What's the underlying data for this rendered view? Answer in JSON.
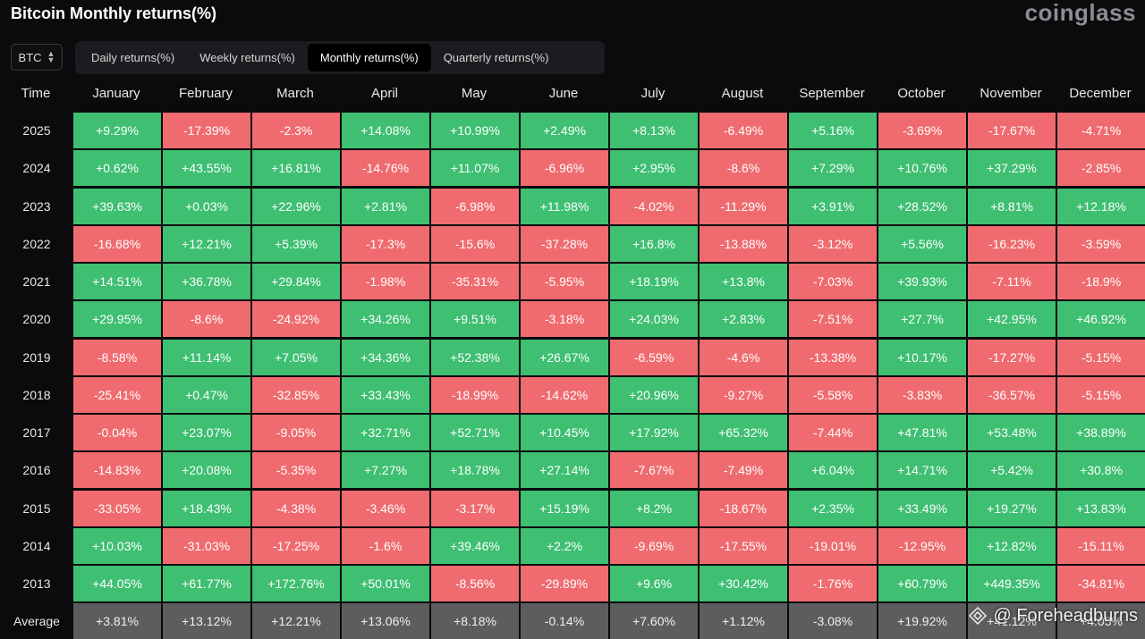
{
  "title": "Bitcoin Monthly returns(%)",
  "brand": "coinglass",
  "coin_select": {
    "value": "BTC"
  },
  "tabs": [
    {
      "label": "Daily returns(%)",
      "active": false
    },
    {
      "label": "Weekly returns(%)",
      "active": false
    },
    {
      "label": "Monthly returns(%)",
      "active": true
    },
    {
      "label": "Quarterly returns(%)",
      "active": false
    }
  ],
  "watermark": "@ Foreheadburns",
  "colors": {
    "positive": "#3ebf72",
    "negative": "#ef6b6f",
    "average": "#5d5d60",
    "background": "#0b0b0d"
  },
  "chart_data": {
    "type": "table",
    "title": "Bitcoin Monthly returns(%)",
    "row_header": "Time",
    "columns": [
      "January",
      "February",
      "March",
      "April",
      "May",
      "June",
      "July",
      "August",
      "September",
      "October",
      "November",
      "December"
    ],
    "rows": [
      {
        "year": "2025",
        "values": [
          "+9.29%",
          "-17.39%",
          "-2.3%",
          "+14.08%",
          "+10.99%",
          "+2.49%",
          "+8.13%",
          "-6.49%",
          "+5.16%",
          "-3.69%",
          "-17.67%",
          "-4.71%"
        ]
      },
      {
        "year": "2024",
        "values": [
          "+0.62%",
          "+43.55%",
          "+16.81%",
          "-14.76%",
          "+11.07%",
          "-6.96%",
          "+2.95%",
          "-8.6%",
          "+7.29%",
          "+10.76%",
          "+37.29%",
          "-2.85%"
        ]
      },
      {
        "year": "2023",
        "values": [
          "+39.63%",
          "+0.03%",
          "+22.96%",
          "+2.81%",
          "-6.98%",
          "+11.98%",
          "-4.02%",
          "-11.29%",
          "+3.91%",
          "+28.52%",
          "+8.81%",
          "+12.18%"
        ]
      },
      {
        "year": "2022",
        "values": [
          "-16.68%",
          "+12.21%",
          "+5.39%",
          "-17.3%",
          "-15.6%",
          "-37.28%",
          "+16.8%",
          "-13.88%",
          "-3.12%",
          "+5.56%",
          "-16.23%",
          "-3.59%"
        ]
      },
      {
        "year": "2021",
        "values": [
          "+14.51%",
          "+36.78%",
          "+29.84%",
          "-1.98%",
          "-35.31%",
          "-5.95%",
          "+18.19%",
          "+13.8%",
          "-7.03%",
          "+39.93%",
          "-7.11%",
          "-18.9%"
        ]
      },
      {
        "year": "2020",
        "values": [
          "+29.95%",
          "-8.6%",
          "-24.92%",
          "+34.26%",
          "+9.51%",
          "-3.18%",
          "+24.03%",
          "+2.83%",
          "-7.51%",
          "+27.7%",
          "+42.95%",
          "+46.92%"
        ]
      },
      {
        "year": "2019",
        "values": [
          "-8.58%",
          "+11.14%",
          "+7.05%",
          "+34.36%",
          "+52.38%",
          "+26.67%",
          "-6.59%",
          "-4.6%",
          "-13.38%",
          "+10.17%",
          "-17.27%",
          "-5.15%"
        ]
      },
      {
        "year": "2018",
        "values": [
          "-25.41%",
          "+0.47%",
          "-32.85%",
          "+33.43%",
          "-18.99%",
          "-14.62%",
          "+20.96%",
          "-9.27%",
          "-5.58%",
          "-3.83%",
          "-36.57%",
          "-5.15%"
        ]
      },
      {
        "year": "2017",
        "values": [
          "-0.04%",
          "+23.07%",
          "-9.05%",
          "+32.71%",
          "+52.71%",
          "+10.45%",
          "+17.92%",
          "+65.32%",
          "-7.44%",
          "+47.81%",
          "+53.48%",
          "+38.89%"
        ]
      },
      {
        "year": "2016",
        "values": [
          "-14.83%",
          "+20.08%",
          "-5.35%",
          "+7.27%",
          "+18.78%",
          "+27.14%",
          "-7.67%",
          "-7.49%",
          "+6.04%",
          "+14.71%",
          "+5.42%",
          "+30.8%"
        ]
      },
      {
        "year": "2015",
        "values": [
          "-33.05%",
          "+18.43%",
          "-4.38%",
          "-3.46%",
          "-3.17%",
          "+15.19%",
          "+8.2%",
          "-18.67%",
          "+2.35%",
          "+33.49%",
          "+19.27%",
          "+13.83%"
        ]
      },
      {
        "year": "2014",
        "values": [
          "+10.03%",
          "-31.03%",
          "-17.25%",
          "-1.6%",
          "+39.46%",
          "+2.2%",
          "-9.69%",
          "-17.55%",
          "-19.01%",
          "-12.95%",
          "+12.82%",
          "-15.11%"
        ]
      },
      {
        "year": "2013",
        "values": [
          "+44.05%",
          "+61.77%",
          "+172.76%",
          "+50.01%",
          "-8.56%",
          "-29.89%",
          "+9.6%",
          "+30.42%",
          "-1.76%",
          "+60.79%",
          "+449.35%",
          "-34.81%"
        ]
      }
    ],
    "average": {
      "label": "Average",
      "values": [
        "+3.81%",
        "+13.12%",
        "+12.21%",
        "+13.06%",
        "+8.18%",
        "-0.14%",
        "+7.60%",
        "+1.12%",
        "-3.08%",
        "+19.92%",
        "+41.12%",
        "+4.05%"
      ]
    }
  }
}
